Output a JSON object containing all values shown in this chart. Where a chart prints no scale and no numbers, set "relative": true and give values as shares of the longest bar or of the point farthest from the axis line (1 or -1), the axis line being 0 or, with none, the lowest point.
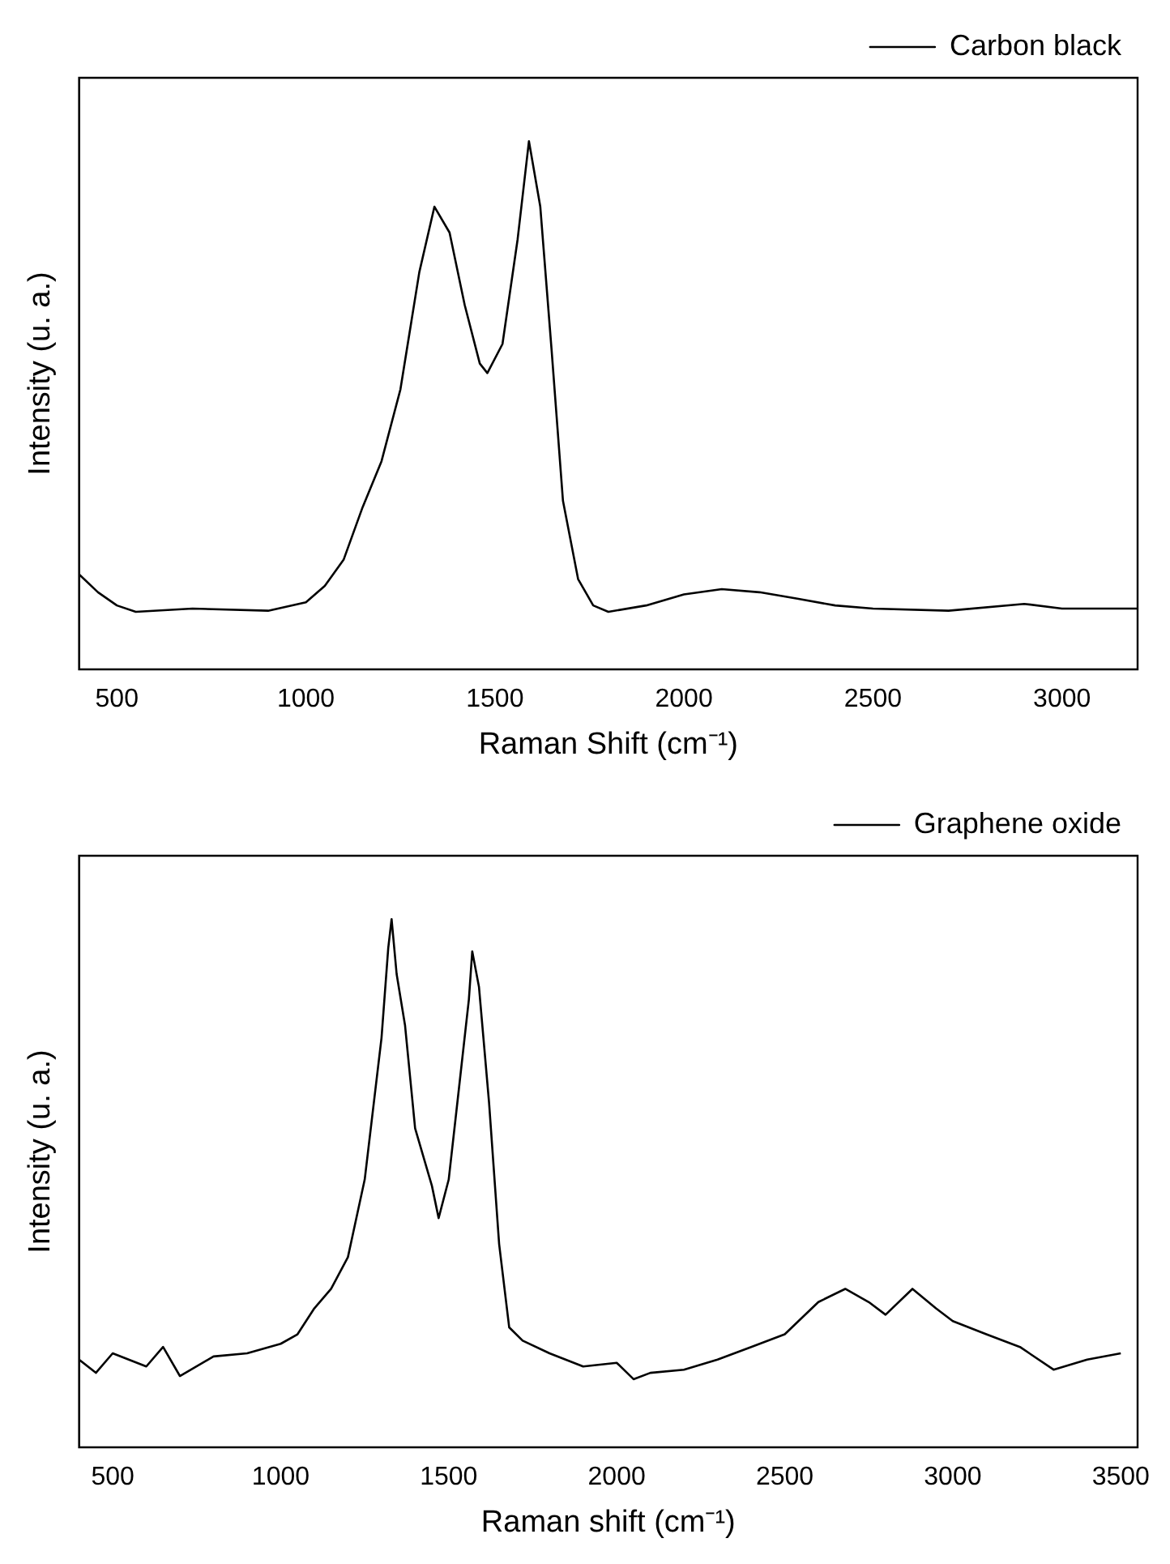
{
  "chart_data": [
    {
      "type": "line",
      "xlabel": "Raman Shift (cm⁻¹)",
      "ylabel": "Intensity (u. a.)",
      "relative": true,
      "legend": "top right",
      "grid": false,
      "xlim": [
        400,
        3200
      ],
      "xticks": [
        500,
        1000,
        1500,
        2000,
        2500,
        3000
      ],
      "x": [
        400,
        450,
        500,
        550,
        700,
        900,
        1000,
        1050,
        1100,
        1150,
        1200,
        1250,
        1300,
        1340,
        1380,
        1420,
        1460,
        1480,
        1520,
        1560,
        1590,
        1620,
        1650,
        1680,
        1720,
        1760,
        1800,
        1900,
        2000,
        2100,
        2200,
        2300,
        2400,
        2500,
        2700,
        2900,
        3000,
        3200
      ],
      "series": [
        {
          "name": "Carbon black",
          "color": "#000000",
          "values": [
            0.18,
            0.146,
            0.121,
            0.109,
            0.115,
            0.111,
            0.127,
            0.158,
            0.208,
            0.307,
            0.394,
            0.53,
            0.752,
            0.876,
            0.827,
            0.69,
            0.579,
            0.561,
            0.616,
            0.814,
            1,
            0.876,
            0.604,
            0.319,
            0.171,
            0.121,
            0.109,
            0.121,
            0.142,
            0.152,
            0.146,
            0.134,
            0.121,
            0.115,
            0.111,
            0.124,
            0.115,
            0.115
          ]
        }
      ]
    },
    {
      "type": "line",
      "xlabel": "Raman shift (cm⁻¹)",
      "ylabel": "Intensity (u. a.)",
      "relative": true,
      "legend": "top right",
      "grid": false,
      "xlim": [
        400,
        3550
      ],
      "xticks": [
        500,
        1000,
        1500,
        2000,
        2500,
        3000,
        3500
      ],
      "x": [
        400,
        450,
        500,
        600,
        650,
        700,
        800,
        900,
        1000,
        1050,
        1100,
        1150,
        1200,
        1250,
        1300,
        1320,
        1330,
        1345,
        1370,
        1400,
        1450,
        1470,
        1500,
        1530,
        1560,
        1570,
        1590,
        1620,
        1650,
        1680,
        1720,
        1800,
        1900,
        2000,
        2050,
        2100,
        2200,
        2300,
        2400,
        2500,
        2600,
        2680,
        2750,
        2800,
        2880,
        2950,
        3000,
        3100,
        3200,
        3300,
        3400,
        3500
      ],
      "series": [
        {
          "name": "Graphene oxide",
          "color": "#000000",
          "values": [
            0.166,
            0.141,
            0.178,
            0.153,
            0.19,
            0.135,
            0.172,
            0.178,
            0.196,
            0.214,
            0.263,
            0.3,
            0.36,
            0.507,
            0.775,
            0.945,
            1,
            0.896,
            0.799,
            0.604,
            0.495,
            0.434,
            0.507,
            0.677,
            0.848,
            0.939,
            0.872,
            0.653,
            0.385,
            0.227,
            0.202,
            0.178,
            0.153,
            0.16,
            0.129,
            0.141,
            0.147,
            0.166,
            0.19,
            0.214,
            0.275,
            0.3,
            0.275,
            0.251,
            0.3,
            0.263,
            0.239,
            0.214,
            0.19,
            0.147,
            0.166,
            0.178
          ]
        }
      ]
    }
  ]
}
